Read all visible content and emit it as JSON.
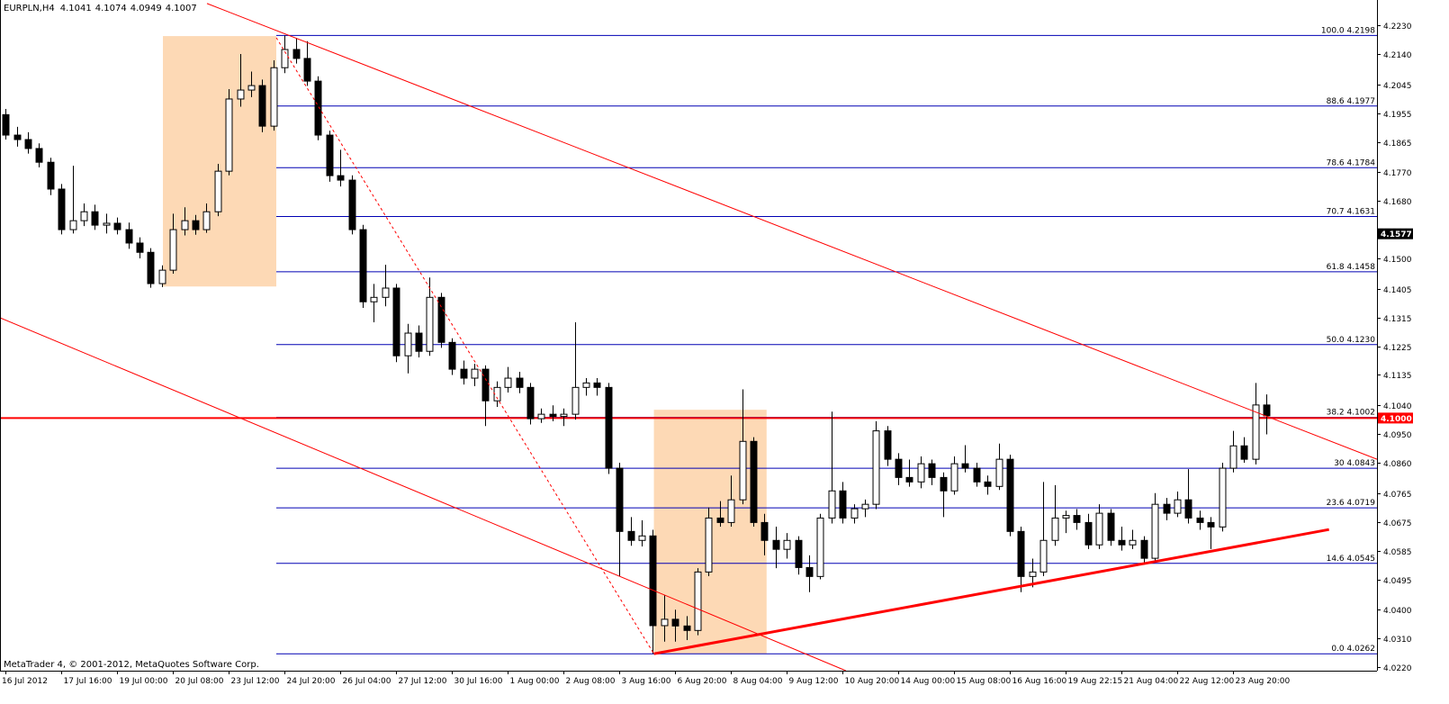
{
  "chart_data": {
    "type": "candlestick",
    "symbol": "EURPLN,H4",
    "footer": "MetaTrader 4, © 2001-2012, MetaQuotes Software Corp.",
    "up_color": "#ffffff",
    "down_color": "#000000",
    "outline_color": "#000000",
    "xlim": [
      -0.5,
      122.9
    ],
    "ylim": [
      4.0209,
      4.2309
    ],
    "open": [
      4.195,
      4.1886,
      4.1872,
      4.1844,
      4.1801,
      4.1717,
      4.159,
      4.1618,
      4.1646,
      4.1604,
      4.161,
      4.159,
      4.1548,
      4.1519,
      4.1421,
      4.1463,
      4.159,
      4.1618,
      4.159,
      4.1646,
      4.1773,
      4.1999,
      4.2027,
      4.2041,
      4.1914,
      4.2097,
      4.2154,
      4.2126,
      4.2055,
      4.1886,
      4.1759,
      4.1745,
      4.159,
      4.1364,
      4.1378,
      4.1407,
      4.1195,
      4.1266,
      4.1209,
      4.1378,
      4.1237,
      4.1153,
      4.1125,
      4.1153,
      4.1054,
      4.1096,
      4.1125,
      4.1096,
      4.0998,
      4.1012,
      4.1005,
      4.1012,
      4.1096,
      4.111,
      4.1096,
      4.0843,
      4.0645,
      4.0617,
      4.0631,
      4.035,
      4.037,
      4.0349,
      4.0335,
      4.0518,
      4.0687,
      4.0673,
      4.0744,
      4.0927,
      4.0673,
      4.0617,
      4.0589,
      4.0617,
      4.0532,
      4.0504,
      4.0687,
      4.0772,
      4.0687,
      4.0716,
      4.073,
      4.096,
      4.0871,
      4.0814,
      4.08,
      4.0857,
      4.0814,
      4.0772,
      4.0857,
      4.0843,
      4.08,
      4.0786,
      4.0871,
      4.0645,
      4.0504,
      4.0518,
      4.0617,
      4.0687,
      4.0695,
      4.0673,
      4.0603,
      4.0702,
      4.0617,
      4.0603,
      4.0617,
      4.0561,
      4.073,
      4.0702,
      4.0744,
      4.0687,
      4.0673,
      4.0659,
      4.0843,
      4.0913,
      4.0871,
      4.1041
    ],
    "high": [
      4.1968,
      4.1912,
      4.1895,
      4.186,
      4.1815,
      4.1733,
      4.179,
      4.1672,
      4.1668,
      4.164,
      4.1628,
      4.1612,
      4.1566,
      4.1532,
      4.1478,
      4.164,
      4.166,
      4.1636,
      4.1672,
      4.1796,
      4.203,
      4.214,
      4.2085,
      4.206,
      4.212,
      4.2198,
      4.219,
      4.218,
      4.207,
      4.19,
      4.184,
      4.176,
      4.1605,
      4.142,
      4.148,
      4.142,
      4.1295,
      4.129,
      4.144,
      4.1392,
      4.125,
      4.118,
      4.117,
      4.1165,
      4.1115,
      4.116,
      4.1145,
      4.111,
      4.103,
      4.104,
      4.103,
      4.13,
      4.1125,
      4.1125,
      4.111,
      4.086,
      4.069,
      4.068,
      4.065,
      4.0445,
      4.04,
      4.038,
      4.053,
      4.072,
      4.074,
      4.082,
      4.109,
      4.094,
      4.07,
      4.066,
      4.064,
      4.063,
      4.057,
      4.07,
      4.102,
      4.08,
      4.073,
      4.0745,
      4.099,
      4.0975,
      4.089,
      4.087,
      4.088,
      4.087,
      4.083,
      4.088,
      4.0915,
      4.086,
      4.082,
      4.092,
      4.0885,
      4.066,
      4.056,
      4.08,
      4.079,
      4.071,
      4.0715,
      4.07,
      4.073,
      4.0715,
      4.066,
      4.065,
      4.063,
      4.0765,
      4.075,
      4.077,
      4.084,
      4.071,
      4.069,
      4.086,
      4.096,
      4.094,
      4.111,
      4.1074
    ],
    "low": [
      4.1872,
      4.185,
      4.1828,
      4.1785,
      4.1698,
      4.1575,
      4.1578,
      4.1601,
      4.1589,
      4.1578,
      4.1575,
      4.153,
      4.15,
      4.1408,
      4.141,
      4.1452,
      4.1572,
      4.1574,
      4.158,
      4.1632,
      4.176,
      4.1975,
      4.2005,
      4.1895,
      4.19,
      4.208,
      4.211,
      4.204,
      4.187,
      4.174,
      4.1725,
      4.1575,
      4.1345,
      4.13,
      4.135,
      4.1175,
      4.114,
      4.119,
      4.1195,
      4.122,
      4.1135,
      4.1105,
      4.11,
      4.0975,
      4.1035,
      4.108,
      4.1078,
      4.098,
      4.0985,
      4.099,
      4.0975,
      4.0995,
      4.107,
      4.107,
      4.0825,
      4.0505,
      4.06,
      4.0598,
      4.0262,
      4.03,
      4.03,
      4.0305,
      4.032,
      4.0505,
      4.066,
      4.066,
      4.073,
      4.066,
      4.057,
      4.053,
      4.056,
      4.051,
      4.0455,
      4.0495,
      4.067,
      4.067,
      4.067,
      4.069,
      4.0715,
      4.085,
      4.079,
      4.0785,
      4.078,
      4.079,
      4.069,
      4.076,
      4.083,
      4.0785,
      4.076,
      4.0775,
      4.063,
      4.0455,
      4.047,
      4.0505,
      4.06,
      4.064,
      4.065,
      4.059,
      4.059,
      4.06,
      4.0585,
      4.059,
      4.0545,
      4.055,
      4.068,
      4.069,
      4.067,
      4.065,
      4.059,
      4.0645,
      4.083,
      4.086,
      4.0855,
      4.0949
    ],
    "close": [
      4.1886,
      4.1872,
      4.1844,
      4.1801,
      4.1717,
      4.159,
      4.1618,
      4.1646,
      4.1604,
      4.161,
      4.159,
      4.1548,
      4.1519,
      4.1421,
      4.1463,
      4.159,
      4.1618,
      4.159,
      4.1646,
      4.1773,
      4.1999,
      4.2027,
      4.2041,
      4.1914,
      4.2097,
      4.2154,
      4.2126,
      4.2055,
      4.1886,
      4.1759,
      4.1745,
      4.159,
      4.1364,
      4.1378,
      4.1407,
      4.1195,
      4.1266,
      4.1209,
      4.1378,
      4.1237,
      4.1153,
      4.1125,
      4.1153,
      4.1054,
      4.1096,
      4.1125,
      4.1096,
      4.0998,
      4.1012,
      4.1005,
      4.1012,
      4.1096,
      4.111,
      4.1096,
      4.0843,
      4.0645,
      4.0617,
      4.0631,
      4.035,
      4.037,
      4.0349,
      4.0335,
      4.0518,
      4.0687,
      4.0673,
      4.0744,
      4.0927,
      4.0673,
      4.0617,
      4.0589,
      4.0617,
      4.0532,
      4.0504,
      4.0687,
      4.0772,
      4.0687,
      4.0716,
      4.073,
      4.096,
      4.0871,
      4.0814,
      4.08,
      4.0857,
      4.0814,
      4.0772,
      4.0857,
      4.0843,
      4.08,
      4.0786,
      4.0871,
      4.0645,
      4.0504,
      4.0518,
      4.0617,
      4.0687,
      4.0695,
      4.0673,
      4.0603,
      4.0702,
      4.0617,
      4.0603,
      4.0617,
      4.0561,
      4.073,
      4.0702,
      4.0744,
      4.0687,
      4.0673,
      4.0659,
      4.0843,
      4.0913,
      4.0871,
      4.1041,
      4.1007
    ],
    "xticks": [
      {
        "value": 0,
        "label": "16 Jul 2012"
      },
      {
        "value": 5,
        "label": "17 Jul 16:00"
      },
      {
        "value": 10,
        "label": "19 Jul 00:00"
      },
      {
        "value": 15,
        "label": "20 Jul 08:00"
      },
      {
        "value": 20,
        "label": "23 Jul 12:00"
      },
      {
        "value": 25,
        "label": "24 Jul 20:00"
      },
      {
        "value": 30,
        "label": "26 Jul 04:00"
      },
      {
        "value": 35,
        "label": "27 Jul 12:00"
      },
      {
        "value": 40,
        "label": "30 Jul 16:00"
      },
      {
        "value": 45,
        "label": "1 Aug 00:00"
      },
      {
        "value": 50,
        "label": "2 Aug 08:00"
      },
      {
        "value": 55,
        "label": "3 Aug 16:00"
      },
      {
        "value": 60,
        "label": "6 Aug 20:00"
      },
      {
        "value": 65,
        "label": "8 Aug 04:00"
      },
      {
        "value": 70,
        "label": "9 Aug 12:00"
      },
      {
        "value": 75,
        "label": "10 Aug 20:00"
      },
      {
        "value": 80,
        "label": "14 Aug 00:00"
      },
      {
        "value": 85,
        "label": "15 Aug 08:00"
      },
      {
        "value": 90,
        "label": "16 Aug 16:00"
      },
      {
        "value": 95,
        "label": "19 Aug 22:15"
      },
      {
        "value": 100,
        "label": "21 Aug 04:00"
      },
      {
        "value": 105,
        "label": "22 Aug 12:00"
      },
      {
        "value": 110,
        "label": "23 Aug 20:00"
      }
    ],
    "yticks": [
      {
        "value": 4.223,
        "label": "4.2230"
      },
      {
        "value": 4.214,
        "label": "4.2140"
      },
      4.2045,
      4.1955,
      4.1865,
      {
        "value": 4.177,
        "label": "4.1770"
      },
      {
        "value": 4.168,
        "label": "4.1680"
      },
      {
        "value": 4.15,
        "label": "4.1500"
      },
      4.1405,
      4.1315,
      4.1225,
      4.1135,
      {
        "value": 4.104,
        "label": "4.1040"
      },
      {
        "value": 4.095,
        "label": "4.0950"
      },
      {
        "value": 4.086,
        "label": "4.0860"
      },
      4.0765,
      4.0675,
      4.0585,
      4.0495,
      {
        "value": 4.04,
        "label": "4.0400"
      },
      {
        "value": 4.031,
        "label": "4.0310"
      },
      {
        "value": 4.022,
        "label": "4.0220"
      }
    ],
    "price_labels": [
      {
        "value": 4.1577,
        "label": "4.1577",
        "color": "#000000"
      },
      {
        "value": 4.1,
        "label": "4.1000",
        "color": "#ff0000"
      }
    ],
    "hline": {
      "value": 4.1,
      "color": "#ff0000"
    },
    "fibonacci": {
      "x_start": 24.26,
      "color": "#0000b4",
      "levels": [
        {
          "value": 4.2198,
          "label": "100.0 4.2198"
        },
        {
          "value": 4.1977,
          "label": "88.6 4.1977"
        },
        {
          "value": 4.1784,
          "label": "78.6 4.1784"
        },
        {
          "value": 4.1631,
          "label": "70.7 4.1631"
        },
        {
          "value": 4.1458,
          "label": "61.8 4.1458"
        },
        {
          "value": 4.123,
          "label": "50.0 4.1230"
        },
        {
          "value": 4.1002,
          "label": "38.2 4.1002"
        },
        {
          "value": 4.0843,
          "label": "30 4.0843"
        },
        {
          "value": 4.0719,
          "label": "23.6 4.0719"
        },
        {
          "value": 4.0545,
          "label": "14.6 4.0545"
        },
        {
          "value": 4.0262,
          "label": "0.0 4.0262"
        }
      ]
    },
    "rectangles": [
      {
        "x": [
          14.1,
          24.26
        ],
        "y": [
          4.1412,
          4.2196
        ],
        "color": "#fdd9b5"
      },
      {
        "x": [
          58.1,
          68.2
        ],
        "y": [
          4.0262,
          4.1026
        ],
        "color": "#fdd9b5"
      }
    ],
    "trendlines": [
      {
        "x": [
          18.05,
          122.9
        ],
        "y": [
          4.2298,
          4.0871
        ],
        "color": "#ff0000",
        "width": 1,
        "dashed": false
      },
      {
        "x": [
          -0.5,
          75.3
        ],
        "y": [
          4.1314,
          4.0209
        ],
        "color": "#ff0000",
        "width": 1,
        "dashed": false
      },
      {
        "x": [
          58.1,
          118.6
        ],
        "y": [
          4.0262,
          4.0651
        ],
        "color": "#ff0000",
        "width": 3,
        "dashed": false
      },
      {
        "x": [
          24.26,
          58.1
        ],
        "y": [
          4.2191,
          4.0262
        ],
        "color": "#ff0000",
        "width": 1,
        "dashed": true
      }
    ]
  }
}
